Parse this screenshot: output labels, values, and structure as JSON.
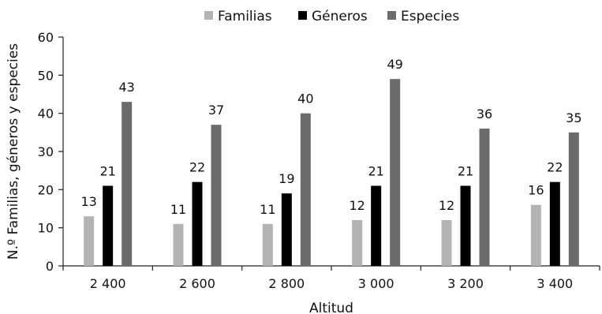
{
  "chart_data": {
    "type": "bar",
    "title": "",
    "xlabel": "Altitud",
    "ylabel": "N.º Familias, géneros y especies",
    "categories": [
      "2 400",
      "2 600",
      "2 800",
      "3 000",
      "3 200",
      "3 400"
    ],
    "y_ticks": [
      "0",
      "10",
      "20",
      "30",
      "40",
      "50",
      "60"
    ],
    "ylim": [
      0,
      60
    ],
    "grid": false,
    "legend_position": "top",
    "series": [
      {
        "name": "Familias",
        "color": "#b3b3b3",
        "values": [
          13,
          11,
          11,
          12,
          12,
          16
        ]
      },
      {
        "name": "Géneros",
        "color": "#000000",
        "values": [
          21,
          22,
          19,
          21,
          21,
          22
        ]
      },
      {
        "name": "Especies",
        "color": "#6b6b6b",
        "values": [
          43,
          37,
          40,
          49,
          36,
          35
        ]
      }
    ]
  }
}
